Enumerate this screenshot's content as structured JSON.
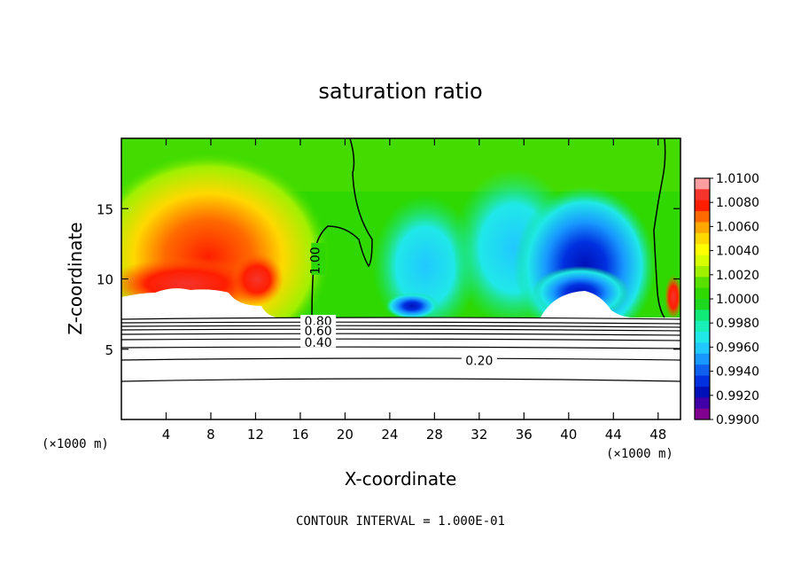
{
  "chart_data": {
    "type": "heatmap",
    "title": "saturation ratio",
    "xlabel": "X-coordinate",
    "ylabel": "Z-coordinate",
    "x_unit_left": "(×1000 m)",
    "x_unit_right": "(×1000 m)",
    "footer": "CONTOUR INTERVAL = 1.000E-01",
    "xlim": [
      0,
      50
    ],
    "ylim": [
      0,
      20
    ],
    "x_ticks": [
      4,
      8,
      12,
      16,
      20,
      24,
      28,
      32,
      36,
      40,
      44,
      48
    ],
    "y_ticks": [
      5,
      10,
      15
    ],
    "colorbar": {
      "levels": [
        "1.0100",
        "1.0080",
        "1.0060",
        "1.0040",
        "1.0020",
        "1.0000",
        "0.9980",
        "0.9960",
        "0.9940",
        "0.9920",
        "0.9900"
      ],
      "colors": [
        "#ff9ea0",
        "#f5342c",
        "#ff1e00",
        "#ff6a00",
        "#ffa800",
        "#ffd800",
        "#ffff00",
        "#d8ff00",
        "#a0f000",
        "#5ae000",
        "#2ed800",
        "#1ed820",
        "#10e878",
        "#18f0b8",
        "#20e8e8",
        "#20c8ff",
        "#1898ff",
        "#1060f0",
        "#0030e0",
        "#0010b8",
        "#4000a8",
        "#800090"
      ]
    },
    "contour_labels": [
      {
        "text": "1.00",
        "x": 17.3,
        "z": 11.3
      },
      {
        "text": "0.80",
        "x": 17.6,
        "z": 7.0
      },
      {
        "text": "0.60",
        "x": 17.6,
        "z": 6.3
      },
      {
        "text": "0.40",
        "x": 17.6,
        "z": 5.5
      },
      {
        "text": "0.20",
        "x": 32.0,
        "z": 4.2
      }
    ]
  }
}
